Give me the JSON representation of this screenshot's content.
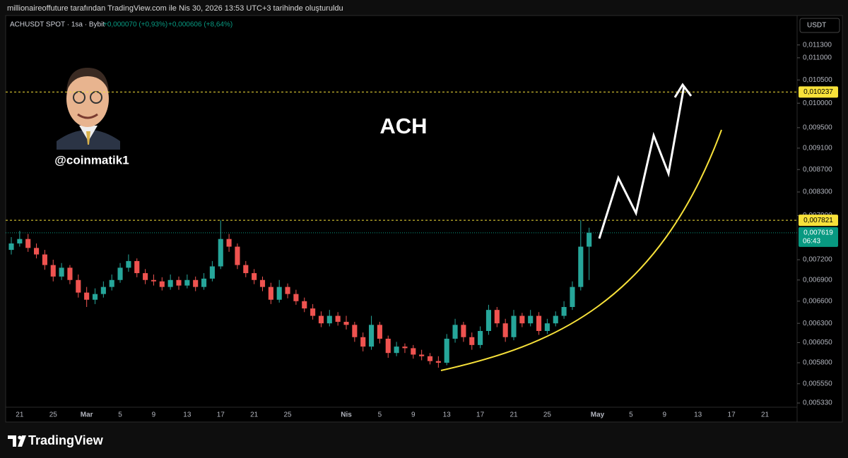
{
  "header": "millionaireoffuture tarafından TradingView.com ile Nis 30, 2026 13:53 UTC+3 tarihinde oluşturuldu",
  "brand": "TradingView",
  "chart_data": {
    "type": "candlestick",
    "symbol": "ACHUSDT SPOT · 1sa · Bybit",
    "change_last": "+0,000070 (+0,93%)",
    "change_day": "+0,000606 (+8,64%)",
    "currency": "USDT",
    "annotation": "ACH",
    "author": "@coinmatik1",
    "log_scale": true,
    "grid": false,
    "up_color": "#26a69a",
    "down_color": "#ef5350",
    "categories": [
      null,
      "21",
      null,
      null,
      null,
      "25",
      null,
      null,
      null,
      "Mar",
      null,
      null,
      null,
      "5",
      null,
      null,
      null,
      "9",
      null,
      null,
      null,
      "13",
      null,
      null,
      null,
      "17",
      null,
      null,
      null,
      "21",
      null,
      null,
      null,
      "25",
      null,
      null,
      null,
      null,
      null,
      null,
      "Nis",
      null,
      null,
      null,
      "5",
      null,
      null,
      null,
      "9",
      null,
      null,
      null,
      "13",
      null,
      null,
      null,
      "17",
      null,
      null,
      null,
      "21",
      null,
      null,
      null,
      "25",
      null,
      null,
      null,
      null,
      null,
      "May",
      null,
      null,
      null,
      "5",
      null,
      null,
      null,
      "9",
      null,
      null,
      null,
      "13",
      null,
      null,
      null,
      "17",
      null,
      null,
      null,
      "21",
      null,
      null
    ],
    "open": [
      0.00735,
      0.00745,
      0.00752,
      0.00738,
      0.00728,
      0.00712,
      0.00695,
      0.00708,
      0.0069,
      0.00672,
      0.00662,
      0.0067,
      0.0068,
      0.0069,
      0.00708,
      0.00718,
      0.007,
      0.0069,
      0.00688,
      0.0068,
      0.0069,
      0.00682,
      0.0069,
      0.0068,
      0.00692,
      0.0071,
      0.00752,
      0.0074,
      0.00712,
      0.007,
      0.0069,
      0.0068,
      0.00662,
      0.0068,
      0.0067,
      0.0066,
      0.0065,
      0.0064,
      0.0063,
      0.0064,
      0.00632,
      0.00628,
      0.00612,
      0.006,
      0.00628,
      0.0061,
      0.00592,
      0.006,
      0.00598,
      0.0059,
      0.00588,
      0.00582,
      0.0058,
      0.0061,
      0.00628,
      0.00612,
      0.00602,
      0.0062,
      0.00648,
      0.0063,
      0.00612,
      0.0064,
      0.0063,
      0.0064,
      0.0062,
      0.0063,
      0.0064,
      0.00652,
      0.0068,
      0.0074,
      null,
      null,
      null,
      null,
      null,
      null,
      null,
      null,
      null,
      null,
      null,
      null,
      null,
      null,
      null,
      null,
      null,
      null,
      null,
      null,
      null,
      null,
      null
    ],
    "high": [
      0.00755,
      0.00765,
      0.0076,
      0.00745,
      0.00735,
      0.0072,
      0.00715,
      0.00712,
      0.00698,
      0.0068,
      0.00678,
      0.00688,
      0.00698,
      0.00715,
      0.00728,
      0.00722,
      0.00706,
      0.00698,
      0.00694,
      0.00698,
      0.00695,
      0.00698,
      0.00695,
      0.007,
      0.00718,
      0.00782,
      0.0076,
      0.00745,
      0.00718,
      0.00706,
      0.00695,
      0.00686,
      0.0069,
      0.00685,
      0.00676,
      0.00665,
      0.00656,
      0.00646,
      0.00648,
      0.00645,
      0.0064,
      0.00632,
      0.00618,
      0.0064,
      0.00632,
      0.00614,
      0.00606,
      0.00604,
      0.00602,
      0.00596,
      0.00592,
      0.00588,
      0.00616,
      0.00636,
      0.00632,
      0.00618,
      0.00626,
      0.00655,
      0.00652,
      0.00636,
      0.00648,
      0.00644,
      0.00648,
      0.00645,
      0.00636,
      0.00646,
      0.0066,
      0.00688,
      0.00782,
      0.0077,
      null,
      null,
      null,
      null,
      null,
      null,
      null,
      null,
      null,
      null,
      null,
      null,
      null,
      null,
      null,
      null,
      null,
      null,
      null,
      null,
      null,
      null,
      null
    ],
    "low": [
      0.00728,
      0.0074,
      0.00732,
      0.00722,
      0.00705,
      0.00688,
      0.0069,
      0.00684,
      0.00665,
      0.00652,
      0.00656,
      0.00665,
      0.00675,
      0.00686,
      0.00702,
      0.00694,
      0.00684,
      0.00682,
      0.00675,
      0.00676,
      0.00676,
      0.00678,
      0.00674,
      0.00676,
      0.00688,
      0.00706,
      0.00732,
      0.00706,
      0.00694,
      0.00684,
      0.00674,
      0.00656,
      0.00658,
      0.00664,
      0.00655,
      0.00645,
      0.00635,
      0.00625,
      0.00626,
      0.00627,
      0.00622,
      0.00606,
      0.00594,
      0.00596,
      0.00604,
      0.00586,
      0.00588,
      0.00592,
      0.00585,
      0.00583,
      0.00578,
      0.00574,
      0.00577,
      0.00605,
      0.00606,
      0.00596,
      0.00598,
      0.00615,
      0.00625,
      0.00606,
      0.00608,
      0.00625,
      0.00626,
      0.00615,
      0.00616,
      0.00626,
      0.00636,
      0.00648,
      0.00675,
      0.0069,
      null,
      null,
      null,
      null,
      null,
      null,
      null,
      null,
      null,
      null,
      null,
      null,
      null,
      null,
      null,
      null,
      null,
      null,
      null,
      null,
      null,
      null,
      null
    ],
    "close": [
      0.00745,
      0.00752,
      0.00738,
      0.00728,
      0.00712,
      0.00695,
      0.00708,
      0.0069,
      0.00672,
      0.00662,
      0.0067,
      0.0068,
      0.0069,
      0.00708,
      0.00718,
      0.007,
      0.0069,
      0.00688,
      0.0068,
      0.0069,
      0.00682,
      0.0069,
      0.0068,
      0.00692,
      0.0071,
      0.00752,
      0.0074,
      0.00712,
      0.007,
      0.0069,
      0.0068,
      0.00662,
      0.0068,
      0.0067,
      0.0066,
      0.0065,
      0.0064,
      0.0063,
      0.0064,
      0.00632,
      0.00628,
      0.00612,
      0.006,
      0.00628,
      0.0061,
      0.00592,
      0.006,
      0.00598,
      0.0059,
      0.00588,
      0.00582,
      0.0058,
      0.0061,
      0.00628,
      0.00612,
      0.00602,
      0.0062,
      0.00648,
      0.0063,
      0.00612,
      0.0064,
      0.0063,
      0.0064,
      0.0062,
      0.0063,
      0.0064,
      0.00652,
      0.0068,
      0.0074,
      0.00762,
      null,
      null,
      null,
      null,
      null,
      null,
      null,
      null,
      null,
      null,
      null,
      null,
      null,
      null,
      null,
      null,
      null,
      null,
      null,
      null,
      null,
      null,
      null
    ],
    "ylim": [
      0.00526,
      0.01202
    ],
    "yticks": [
      {
        "value": 0.0113,
        "label": "0,011300"
      },
      {
        "value": 0.011,
        "label": "0,011000"
      },
      {
        "value": 0.0105,
        "label": "0,010500"
      },
      {
        "value": 0.01,
        "label": "0,010000"
      },
      {
        "value": 0.0095,
        "label": "0,009500"
      },
      {
        "value": 0.0091,
        "label": "0,009100"
      },
      {
        "value": 0.0087,
        "label": "0,008700"
      },
      {
        "value": 0.0083,
        "label": "0,008300"
      },
      {
        "value": 0.0079,
        "label": "0,007900"
      },
      {
        "value": 0.0072,
        "label": "0,007200"
      },
      {
        "value": 0.0069,
        "label": "0,006900"
      },
      {
        "value": 0.0066,
        "label": "0,006600"
      },
      {
        "value": 0.0063,
        "label": "0,006300"
      },
      {
        "value": 0.00605,
        "label": "0,006050"
      },
      {
        "value": 0.0058,
        "label": "0,005800"
      },
      {
        "value": 0.00555,
        "label": "0,005550"
      },
      {
        "value": 0.00533,
        "label": "0,005330"
      }
    ],
    "price_lines": [
      {
        "value": 0.010237,
        "label": "0,010237",
        "color": "#f7e13a"
      },
      {
        "value": 0.007821,
        "label": "0,007821",
        "color": "#f7e13a"
      }
    ],
    "last_price": {
      "value": 0.007619,
      "label": "0,007619",
      "countdown": "06:43",
      "color": "#089981"
    }
  }
}
